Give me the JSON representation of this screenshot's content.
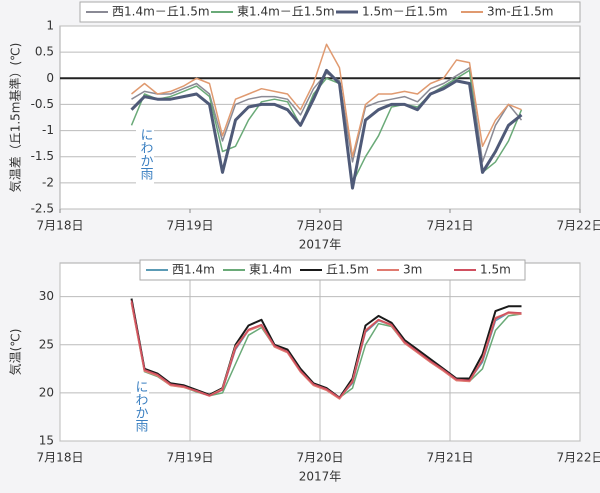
{
  "chart_data": [
    {
      "type": "line",
      "y_label": "気温差（丘1.5m基準）(℃)",
      "x_label": "2017年",
      "annotation": "にわか雨",
      "xlim": [
        18,
        22
      ],
      "ylim": [
        -2.5,
        1
      ],
      "xticks": [
        {
          "value": 18,
          "label": "7月18日"
        },
        {
          "value": 19,
          "label": "7月19日"
        },
        {
          "value": 20,
          "label": "7月20日"
        },
        {
          "value": 21,
          "label": "7月21日"
        },
        {
          "value": 22,
          "label": "7月22日"
        }
      ],
      "yticks": [
        -2.5,
        -2,
        -1.5,
        -1,
        -0.5,
        0,
        0.5,
        1
      ],
      "grid": "y",
      "x": [
        18.55,
        18.65,
        18.75,
        18.85,
        18.95,
        19.05,
        19.15,
        19.25,
        19.35,
        19.45,
        19.55,
        19.65,
        19.75,
        19.85,
        19.95,
        20.05,
        20.15,
        20.25,
        20.35,
        20.45,
        20.55,
        20.65,
        20.75,
        20.85,
        20.95,
        21.05,
        21.15,
        21.25,
        21.35,
        21.45,
        21.55
      ],
      "series": [
        {
          "name": "西1.4m－丘1.5m",
          "color": "#8a8a95",
          "width": 1.5,
          "values": [
            -0.4,
            -0.25,
            -0.3,
            -0.3,
            -0.2,
            -0.1,
            -0.3,
            -1.2,
            -0.5,
            -0.4,
            -0.35,
            -0.35,
            -0.4,
            -0.7,
            -0.2,
            0.1,
            -0.05,
            -1.6,
            -0.55,
            -0.45,
            -0.4,
            -0.35,
            -0.45,
            -0.2,
            -0.1,
            0.05,
            0.2,
            -1.6,
            -0.9,
            -0.5,
            -0.8
          ]
        },
        {
          "name": "東1.4m－丘1.5m",
          "color": "#6aaa78",
          "width": 1.5,
          "values": [
            -0.9,
            -0.3,
            -0.4,
            -0.35,
            -0.25,
            -0.15,
            -0.35,
            -1.4,
            -1.3,
            -0.8,
            -0.45,
            -0.4,
            -0.45,
            -0.9,
            -0.3,
            0.0,
            -0.1,
            -2.0,
            -1.5,
            -1.1,
            -0.55,
            -0.5,
            -0.55,
            -0.3,
            -0.15,
            0.0,
            0.15,
            -1.8,
            -1.6,
            -1.2,
            -0.6
          ]
        },
        {
          "name": "1.5m－丘1.5m",
          "color": "#4f5a78",
          "width": 3,
          "values": [
            -0.6,
            -0.35,
            -0.4,
            -0.4,
            -0.35,
            -0.3,
            -0.5,
            -1.8,
            -0.8,
            -0.55,
            -0.5,
            -0.5,
            -0.6,
            -0.9,
            -0.4,
            0.15,
            -0.1,
            -2.1,
            -0.8,
            -0.6,
            -0.5,
            -0.5,
            -0.6,
            -0.3,
            -0.2,
            -0.05,
            -0.1,
            -1.8,
            -1.4,
            -0.9,
            -0.7
          ]
        },
        {
          "name": "3m-丘1.5m",
          "color": "#e09a70",
          "width": 1.5,
          "values": [
            -0.3,
            -0.1,
            -0.3,
            -0.25,
            -0.15,
            0.0,
            -0.1,
            -1.1,
            -0.4,
            -0.3,
            -0.2,
            -0.25,
            -0.3,
            -0.6,
            -0.1,
            0.65,
            0.2,
            -1.5,
            -0.5,
            -0.3,
            -0.3,
            -0.25,
            -0.3,
            -0.1,
            0.0,
            0.35,
            0.3,
            -1.3,
            -0.8,
            -0.5,
            -0.6
          ]
        }
      ]
    },
    {
      "type": "line",
      "y_label": "気温(℃)",
      "x_label": "2017年",
      "annotation": "にわか雨",
      "xlim": [
        18,
        22
      ],
      "ylim": [
        15,
        33.5
      ],
      "xticks": [
        {
          "value": 18,
          "label": "7月18日"
        },
        {
          "value": 19,
          "label": "7月19日"
        },
        {
          "value": 20,
          "label": "7月20日"
        },
        {
          "value": 21,
          "label": "7月21日"
        },
        {
          "value": 22,
          "label": "7月22日"
        }
      ],
      "yticks": [
        15,
        20,
        25,
        30
      ],
      "grid": "both",
      "x": [
        18.55,
        18.65,
        18.75,
        18.85,
        18.95,
        19.05,
        19.15,
        19.25,
        19.35,
        19.45,
        19.55,
        19.65,
        19.75,
        19.85,
        19.95,
        20.05,
        20.15,
        20.25,
        20.35,
        20.45,
        20.55,
        20.65,
        20.75,
        20.85,
        20.95,
        21.05,
        21.15,
        21.25,
        21.35,
        21.45,
        21.55
      ],
      "series": [
        {
          "name": "西1.4m",
          "color": "#5b9bb5",
          "width": 1.5,
          "values": [
            29.5,
            22.3,
            21.8,
            20.9,
            20.7,
            20.2,
            19.8,
            20.3,
            24.5,
            26.5,
            27,
            24.8,
            24.2,
            22.3,
            20.9,
            20.4,
            19.5,
            21,
            26.3,
            27.5,
            27,
            25.2,
            24.3,
            23.3,
            22.4,
            21.4,
            21.3,
            23.2,
            27.5,
            28.3,
            28.3
          ]
        },
        {
          "name": "東1.4m",
          "color": "#6aaa78",
          "width": 1.5,
          "values": [
            29.3,
            22.2,
            21.7,
            20.8,
            20.6,
            20.1,
            19.7,
            20,
            23,
            26,
            26.8,
            24.8,
            24.2,
            22.2,
            20.8,
            20.3,
            19.5,
            20.5,
            25,
            27.2,
            26.9,
            25.2,
            24.2,
            23.2,
            22.3,
            21.3,
            21.2,
            22.5,
            26.5,
            28,
            28.2
          ]
        },
        {
          "name": "丘1.5m",
          "color": "#1a1a1a",
          "width": 2,
          "values": [
            29.8,
            22.5,
            22,
            21,
            20.8,
            20.3,
            19.8,
            20.5,
            25,
            27,
            27.6,
            25,
            24.5,
            22.5,
            21,
            20.5,
            19.5,
            21.5,
            27,
            28,
            27.3,
            25.5,
            24.5,
            23.5,
            22.5,
            21.5,
            21.5,
            24,
            28.5,
            29,
            29
          ]
        },
        {
          "name": "3m",
          "color": "#e07a70",
          "width": 2,
          "values": [
            29.4,
            22.3,
            21.8,
            20.8,
            20.6,
            20.2,
            19.7,
            20.4,
            24.8,
            26.5,
            27,
            24.8,
            24.2,
            22.2,
            20.8,
            20.3,
            19.4,
            21.2,
            26.5,
            27.6,
            27,
            25.2,
            24.2,
            23.2,
            22.3,
            21.3,
            21.2,
            23.5,
            27.8,
            28.3,
            28.2
          ]
        },
        {
          "name": "1.5m",
          "color": "#d05060",
          "width": 1.5,
          "values": [
            29.6,
            22.4,
            21.9,
            20.9,
            20.7,
            20.2,
            19.7,
            20.3,
            24.6,
            26.6,
            27.1,
            24.9,
            24.3,
            22.3,
            20.9,
            20.4,
            19.5,
            21.1,
            26.4,
            27.6,
            27.1,
            25.3,
            24.3,
            23.3,
            22.4,
            21.4,
            21.3,
            23.4,
            27.7,
            28.4,
            28.3
          ]
        }
      ]
    }
  ]
}
